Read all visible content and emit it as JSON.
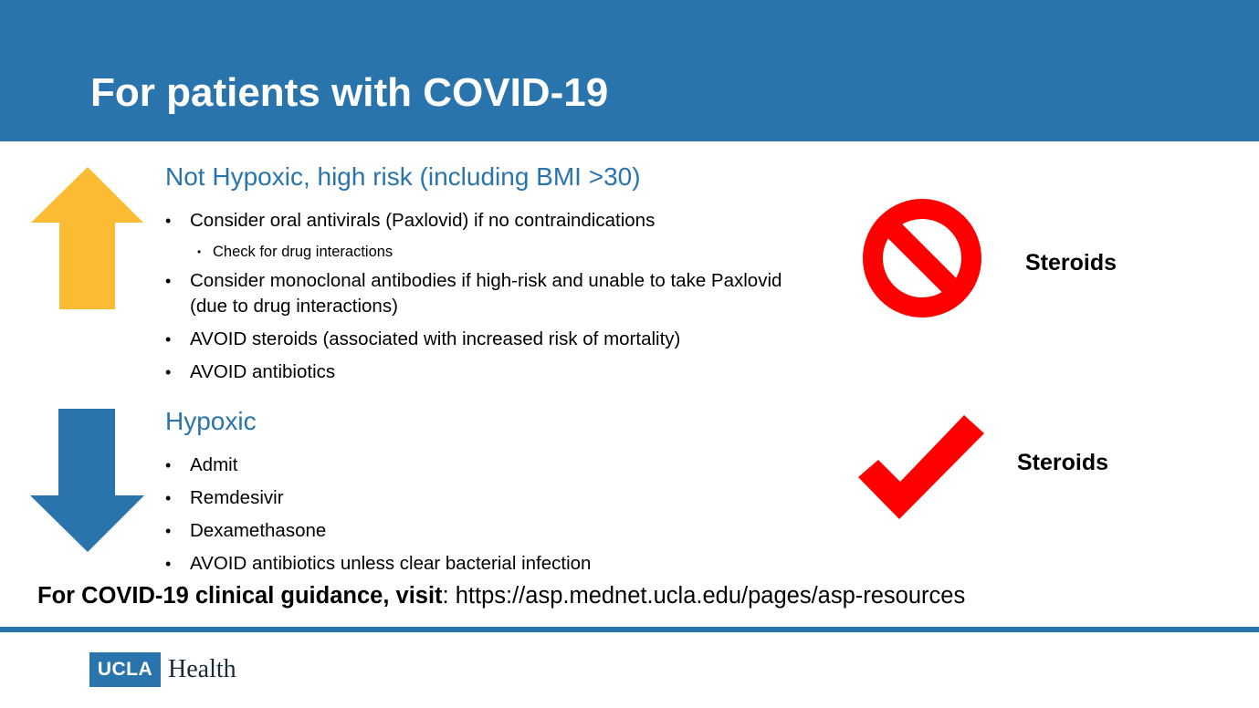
{
  "slide": {
    "title": "For patients with COVID-19",
    "colors": {
      "brand_blue": "#2A74AE",
      "arrow_up": "#FBBC33",
      "arrow_down": "#2A74AE",
      "icon_red": "#FF0000"
    }
  },
  "sections": [
    {
      "heading": "Not Hypoxic, high risk (including BMI >30)",
      "arrow_icon": "arrow-up-icon",
      "bullets": [
        {
          "text": "Consider oral antivirals (Paxlovid) if no contraindications"
        },
        {
          "text": "Check for drug interactions",
          "level": 2
        },
        {
          "text": "Consider monoclonal antibodies if high-risk and unable to take Paxlovid (due to drug interactions)"
        },
        {
          "text": "AVOID steroids (associated with increased risk of mortality)"
        },
        {
          "text": "AVOID antibiotics"
        }
      ],
      "side_icon": "prohibited-icon",
      "side_label": "Steroids"
    },
    {
      "heading": "Hypoxic",
      "arrow_icon": "arrow-down-icon",
      "bullets": [
        {
          "text": "Admit"
        },
        {
          "text": "Remdesivir"
        },
        {
          "text": "Dexamethasone"
        },
        {
          "text": "AVOID antibiotics unless clear bacterial infection"
        }
      ],
      "side_icon": "checkmark-icon",
      "side_label": "Steroids"
    }
  ],
  "guidance": {
    "label": "For COVID-19 clinical guidance, visit",
    "separator": ": ",
    "url": "https://asp.mednet.ucla.edu/pages/asp-resources"
  },
  "bullet_glyph": "•",
  "logo": {
    "box_text": "UCLA",
    "word": "Health"
  }
}
